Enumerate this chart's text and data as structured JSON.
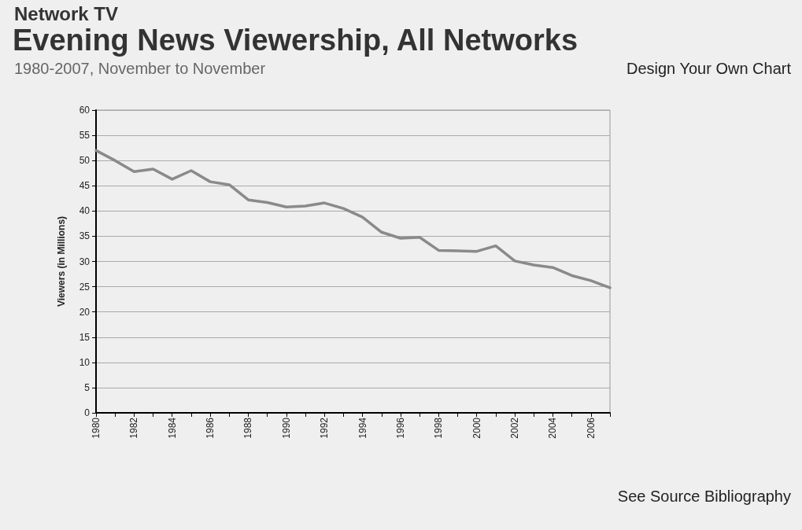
{
  "chart_data": {
    "type": "line",
    "title": "Evening News Viewership, All Networks",
    "subtitle": "1980-2007, November to November",
    "ylabel": "Viewers (in Millions)",
    "annotations": [
      "Network TV",
      "Design Your Own Chart",
      "See Source Bibliography"
    ],
    "categories": [
      "1980",
      null,
      "1982",
      null,
      "1984",
      null,
      "1986",
      null,
      "1988",
      null,
      "1990",
      null,
      "1992",
      null,
      "1994",
      null,
      "1996",
      null,
      "1998",
      null,
      "2000",
      null,
      "2002",
      null,
      "2004",
      null,
      "2006",
      null
    ],
    "series": [
      {
        "color": "#8a8a8a",
        "values": [
          52,
          50,
          47.8,
          48.3,
          46.3,
          48,
          45.8,
          45.2,
          42.2,
          41.7,
          40.8,
          41,
          41.6,
          40.5,
          38.8,
          35.8,
          34.6,
          34.8,
          32.2,
          32.1,
          32,
          33.1,
          30.1,
          29.3,
          28.8,
          27.2,
          26.2,
          24.8
        ]
      }
    ],
    "ylim": [
      0,
      60
    ],
    "yticks": [
      0,
      5,
      10,
      15,
      20,
      25,
      30,
      35,
      40,
      45,
      50,
      55,
      60
    ],
    "grid": "y",
    "marker": "none",
    "line_style": "solid"
  }
}
